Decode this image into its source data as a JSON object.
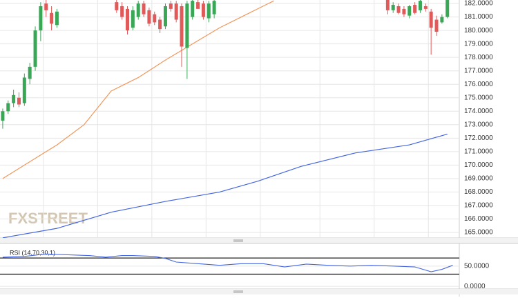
{
  "chart_data": [
    {
      "type": "candlestick",
      "watermark": "FXSTREET",
      "up_color": "#3aa757",
      "down_color": "#e05a5a",
      "x": [
        0,
        1,
        2,
        3,
        4,
        5,
        6,
        7,
        8,
        9,
        10,
        21,
        22,
        23,
        24,
        25,
        26,
        27,
        28,
        29,
        30,
        31,
        32,
        33,
        34,
        35,
        36,
        37,
        38,
        39,
        71,
        72,
        73,
        74,
        75,
        76,
        77,
        78,
        79,
        80,
        81,
        82
      ],
      "open": [
        173.3,
        174.0,
        174.6,
        175.0,
        174.6,
        176.4,
        177.3,
        180.0,
        182.0,
        181.3,
        180.4,
        182.1,
        181.8,
        181.6,
        180.2,
        181.0,
        182.0,
        181.5,
        181.2,
        180.8,
        180.3,
        182.0,
        182.0,
        181.8,
        178.7,
        181.0,
        182.1,
        182.0,
        180.9,
        181.2,
        182.3,
        181.5,
        181.8,
        181.6,
        181.1,
        181.9,
        181.5,
        181.8,
        181.4,
        180.8,
        180.6,
        181.0
      ],
      "high": [
        174.2,
        174.8,
        175.6,
        175.4,
        176.8,
        177.6,
        180.3,
        182.1,
        182.3,
        181.8,
        181.6,
        182.3,
        182.1,
        181.8,
        181.8,
        182.2,
        182.2,
        181.7,
        181.4,
        181.0,
        182.0,
        182.2,
        182.2,
        182.0,
        182.2,
        182.3,
        182.3,
        182.2,
        182.2,
        182.3,
        182.3,
        182.1,
        182.0,
        181.8,
        181.9,
        182.1,
        182.3,
        182.0,
        181.6,
        181.1,
        181.2,
        182.3
      ],
      "low": [
        172.7,
        173.8,
        174.3,
        174.3,
        174.4,
        176.0,
        177.0,
        179.2,
        181.0,
        180.0,
        180.2,
        181.3,
        180.8,
        179.7,
        180.0,
        180.8,
        181.0,
        180.3,
        180.4,
        179.8,
        180.1,
        181.4,
        180.6,
        177.3,
        176.4,
        180.8,
        181.7,
        180.8,
        180.6,
        180.9,
        181.2,
        181.3,
        181.2,
        181.0,
        180.9,
        181.2,
        181.3,
        181.4,
        178.2,
        179.6,
        180.5,
        180.9
      ],
      "close": [
        174.0,
        174.6,
        175.2,
        174.5,
        176.5,
        177.3,
        180.0,
        181.8,
        181.5,
        180.5,
        181.4,
        181.5,
        181.0,
        180.0,
        181.5,
        182.0,
        181.2,
        180.5,
        180.6,
        180.1,
        181.8,
        181.6,
        180.8,
        178.8,
        182.0,
        182.2,
        181.6,
        181.0,
        182.0,
        182.2,
        181.5,
        181.9,
        181.3,
        181.2,
        181.8,
        181.3,
        182.2,
        181.6,
        180.2,
        179.9,
        181.0,
        182.3
      ],
      "overlays": [
        {
          "color": "#f0965a",
          "x": [
            0,
            4,
            10,
            15,
            20,
            25,
            30,
            35,
            40,
            45,
            50
          ],
          "values": [
            169.0,
            170.0,
            171.5,
            173.0,
            175.5,
            176.5,
            177.8,
            179.0,
            180.2,
            181.2,
            182.2
          ]
        },
        {
          "color": "#4466e0",
          "x": [
            0,
            10,
            20,
            30,
            40,
            47,
            55,
            65,
            75,
            82
          ],
          "values": [
            164.6,
            165.3,
            166.5,
            167.3,
            168.0,
            168.8,
            169.9,
            170.9,
            171.5,
            172.3
          ]
        }
      ],
      "xlim": [
        -0.5,
        84.2
      ],
      "ylim": [
        164.59,
        182.26
      ],
      "yticks": [
        {
          "value": 165,
          "label": "165.0000"
        },
        {
          "value": 166,
          "label": "166.0000"
        },
        {
          "value": 167,
          "label": "167.0000"
        },
        {
          "value": 168,
          "label": "168.0000"
        },
        {
          "value": 169,
          "label": "169.0000"
        },
        {
          "value": 170,
          "label": "170.0000"
        },
        {
          "value": 171,
          "label": "171.0000"
        },
        {
          "value": 172,
          "label": "172.0000"
        },
        {
          "value": 173,
          "label": "173.0000"
        },
        {
          "value": 174,
          "label": "174.0000"
        },
        {
          "value": 175,
          "label": "175.0000"
        },
        {
          "value": 176,
          "label": "176.0000"
        },
        {
          "value": 177,
          "label": "177.0000"
        },
        {
          "value": 178,
          "label": "178.0000"
        },
        {
          "value": 179,
          "label": "179.0000"
        },
        {
          "value": 180,
          "label": "180.0000"
        },
        {
          "value": 181,
          "label": "181.0000"
        },
        {
          "value": 182,
          "label": "182.0000"
        }
      ],
      "xgrid": [
        7.5,
        17.5,
        27.5,
        37.5,
        47.5,
        58.5,
        68.5,
        78.5
      ]
    },
    {
      "type": "line",
      "title": "RSI (14,70,30,1)",
      "color": "#4466e0",
      "x": [
        0,
        4,
        8,
        12,
        16,
        19,
        22,
        24,
        28,
        30,
        32,
        36,
        40,
        44,
        48,
        52,
        56,
        60,
        64,
        68,
        72,
        76,
        79,
        81,
        83
      ],
      "values": [
        72,
        74,
        80,
        78,
        76,
        72,
        76,
        76,
        74,
        69,
        60,
        56,
        52,
        56,
        56,
        48,
        55,
        52,
        50,
        52,
        50,
        48,
        36,
        42,
        52
      ],
      "hlines": [
        70,
        30
      ],
      "xlim": [
        -0.5,
        84.2
      ],
      "ylim": [
        -6.5,
        106
      ],
      "yticks": [
        {
          "value": 50,
          "label": "50.0000"
        },
        {
          "value": 0,
          "label": "0.0000"
        }
      ]
    }
  ]
}
